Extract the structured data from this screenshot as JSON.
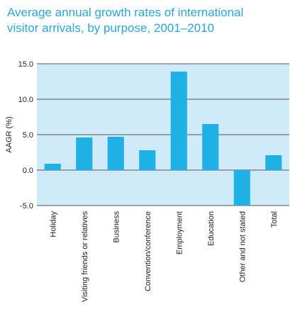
{
  "chart_data": {
    "type": "bar",
    "title_lines": [
      "Average annual growth rates of international",
      "visitor arrivals, by purpose, 2001–2010"
    ],
    "ylabel": "AAGR (%)",
    "xlabel": "",
    "ylim": [
      -5.0,
      15.0
    ],
    "yticks": [
      "15.0",
      "10.0",
      "5.0",
      "0.0",
      "-5.0"
    ],
    "ytick_values": [
      15,
      10,
      5,
      0,
      -5
    ],
    "grid": true,
    "categories": [
      "Holiday",
      "Visiting friends or relatives",
      "Business",
      "Convention/conference",
      "Employment",
      "Education",
      "Other and not stated",
      "Total"
    ],
    "values": [
      0.9,
      4.6,
      4.7,
      2.8,
      13.9,
      6.5,
      -5.0,
      2.1
    ],
    "colors": {
      "bar": "#1fb1e6",
      "background": "#cfeaf8",
      "grid": "#555555",
      "title": "#2aa6d6"
    }
  }
}
